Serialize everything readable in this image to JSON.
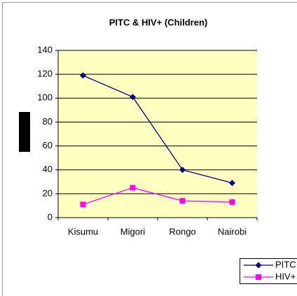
{
  "chart_data": {
    "type": "line",
    "title": "PITC & HIV+ (Children)",
    "categories": [
      "Kisumu",
      "Migori",
      "Rongo",
      "Nairobi"
    ],
    "series": [
      {
        "name": "PITC",
        "color": "#000080",
        "marker": "diamond",
        "values": [
          119,
          101,
          40,
          29
        ]
      },
      {
        "name": "HIV+",
        "color": "#ff00ff",
        "marker": "square",
        "values": [
          11,
          25,
          14,
          13
        ]
      }
    ],
    "ylim": [
      0,
      140
    ],
    "yticks": [
      0,
      20,
      40,
      60,
      80,
      100,
      120,
      140
    ],
    "grid": true,
    "legend": "lower right"
  }
}
